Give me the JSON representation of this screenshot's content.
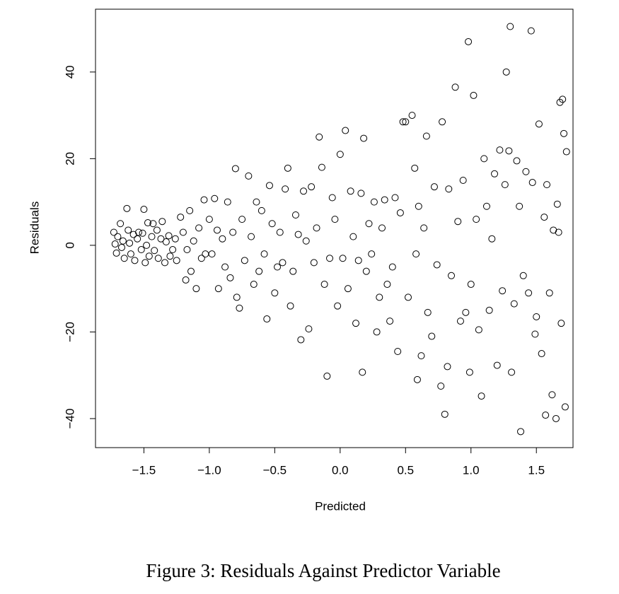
{
  "chart_data": {
    "type": "scatter",
    "xlabel": "Predicted",
    "ylabel": "Residuals",
    "caption": "Figure 3: Residuals Against Predictor Variable",
    "color": "#000000",
    "xlim": [
      -1.87,
      1.78
    ],
    "ylim": [
      -46.7,
      54.5
    ],
    "xticks": [
      {
        "value": -1.5,
        "label": "−1.5"
      },
      {
        "value": -1,
        "label": "−1.0"
      },
      {
        "value": -0.5,
        "label": "−0.5"
      },
      {
        "value": 0,
        "label": "0.0"
      },
      0.5,
      {
        "value": 1,
        "label": "1.0"
      },
      1.5
    ],
    "yticks": [
      {
        "value": -40,
        "label": "−40"
      },
      {
        "value": -20,
        "label": "−20"
      },
      0,
      20,
      40
    ],
    "x": [
      -1.73,
      -1.72,
      -1.71,
      -1.7,
      -1.68,
      -1.67,
      -1.66,
      -1.65,
      -1.63,
      -1.62,
      -1.61,
      -1.6,
      -1.58,
      -1.57,
      -1.55,
      -1.54,
      -1.52,
      -1.51,
      -1.5,
      -1.49,
      -1.48,
      -1.47,
      -1.46,
      -1.44,
      -1.43,
      -1.42,
      -1.4,
      -1.39,
      -1.37,
      -1.36,
      -1.34,
      -1.33,
      -1.31,
      -1.3,
      -1.28,
      -1.26,
      -1.25,
      -1.22,
      -1.2,
      -1.18,
      -1.17,
      -1.15,
      -1.14,
      -1.12,
      -1.1,
      -1.08,
      -1.06,
      -1.04,
      -1.03,
      -1.0,
      -0.98,
      -0.96,
      -0.94,
      -0.93,
      -0.9,
      -0.88,
      -0.86,
      -0.84,
      -0.82,
      -0.8,
      -0.79,
      -0.77,
      -0.75,
      -0.73,
      -0.7,
      -0.68,
      -0.66,
      -0.64,
      -0.62,
      -0.6,
      -0.58,
      -0.56,
      -0.54,
      -0.52,
      -0.5,
      -0.48,
      -0.46,
      -0.44,
      -0.42,
      -0.4,
      -0.38,
      -0.36,
      -0.34,
      -0.32,
      -0.3,
      -0.28,
      -0.26,
      -0.24,
      -0.22,
      -0.2,
      -0.18,
      -0.16,
      -0.14,
      -0.12,
      -0.1,
      -0.08,
      -0.06,
      -0.04,
      -0.02,
      0.0,
      0.02,
      0.04,
      0.06,
      0.08,
      0.1,
      0.12,
      0.14,
      0.16,
      0.17,
      0.18,
      0.2,
      0.22,
      0.24,
      0.26,
      0.28,
      0.3,
      0.32,
      0.34,
      0.36,
      0.38,
      0.4,
      0.42,
      0.44,
      0.46,
      0.48,
      0.5,
      0.52,
      0.55,
      0.57,
      0.58,
      0.59,
      0.6,
      0.62,
      0.64,
      0.66,
      0.67,
      0.7,
      0.72,
      0.74,
      0.77,
      0.78,
      0.8,
      0.82,
      0.83,
      0.85,
      0.88,
      0.9,
      0.92,
      0.94,
      0.96,
      0.98,
      0.99,
      1.0,
      1.02,
      1.04,
      1.06,
      1.08,
      1.1,
      1.12,
      1.14,
      1.16,
      1.18,
      1.2,
      1.22,
      1.24,
      1.26,
      1.27,
      1.29,
      1.3,
      1.31,
      1.33,
      1.35,
      1.37,
      1.38,
      1.4,
      1.42,
      1.44,
      1.46,
      1.47,
      1.49,
      1.5,
      1.52,
      1.54,
      1.56,
      1.57,
      1.58,
      1.6,
      1.62,
      1.63,
      1.65,
      1.66,
      1.67,
      1.68,
      1.69,
      1.7,
      1.71,
      1.72,
      1.73
    ],
    "values": [
      3,
      0.3,
      -1.8,
      2,
      5,
      -0.5,
      1,
      -3,
      8.5,
      3.5,
      0.5,
      -2,
      2.5,
      -3.5,
      1.5,
      3,
      -1,
      2.8,
      8.3,
      -4,
      0,
      5.2,
      -2.5,
      2,
      5,
      -1.2,
      3.5,
      -3,
      1.5,
      5.5,
      -4,
      0.8,
      2.2,
      -2.5,
      -1,
      1.5,
      -3.5,
      6.5,
      3,
      -8,
      -1,
      8,
      -6,
      1,
      -10,
      4,
      -3,
      10.5,
      -2,
      6,
      -2,
      10.8,
      3.5,
      -10,
      1.5,
      -5,
      10,
      -7.5,
      3,
      17.7,
      -12,
      -14.5,
      6,
      -3.5,
      16,
      2,
      -9,
      10,
      -6,
      8,
      -2,
      -17,
      13.8,
      5,
      -11,
      -5,
      3,
      -4,
      13,
      17.8,
      -14,
      -6,
      7,
      2.5,
      -21.8,
      12.5,
      1,
      -19.3,
      13.5,
      -4,
      4,
      25,
      18,
      -9,
      -30.2,
      -3,
      11,
      6,
      -14,
      21,
      -3,
      26.5,
      -10,
      12.5,
      2,
      -18,
      -3.5,
      12,
      -29.3,
      24.7,
      -6,
      5,
      -2,
      10,
      -20,
      -12,
      4,
      10.5,
      -9,
      -17.5,
      -5,
      11,
      -24.5,
      7.5,
      28.5,
      28.5,
      -12,
      30,
      17.8,
      -2,
      -31,
      9,
      -25.5,
      4,
      25.2,
      -15.5,
      -21,
      13.5,
      -4.5,
      -32.5,
      28.5,
      -39,
      -28,
      13,
      -7,
      36.5,
      5.5,
      -17.5,
      15,
      -15.5,
      47,
      -29.3,
      -9,
      34.6,
      6,
      -19.5,
      -34.8,
      20,
      9,
      -15,
      1.5,
      16.5,
      -27.7,
      22,
      -10.5,
      14,
      40,
      21.8,
      50.5,
      -29.3,
      -13.5,
      19.5,
      9,
      -43,
      -7,
      17,
      -11,
      49.5,
      14.5,
      -20.5,
      -16.5,
      28,
      -25,
      6.5,
      -39.2,
      14,
      -11,
      -34.5,
      3.5,
      -40,
      9.5,
      3,
      33,
      -18,
      33.7,
      25.8,
      -37.3,
      21.6
    ]
  }
}
